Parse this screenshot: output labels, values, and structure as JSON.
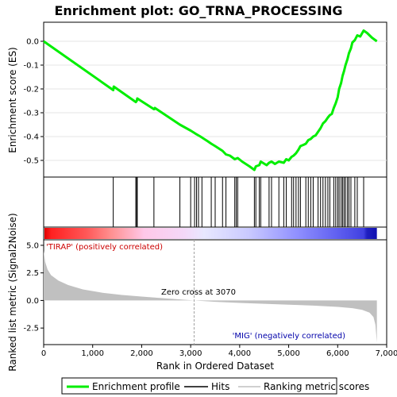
{
  "chart_data": {
    "type": "line",
    "title": "Enrichment plot: GO_TRNA_PROCESSING",
    "xlabel": "Rank in Ordered Dataset",
    "ylabel_top": "Enrichment score (ES)",
    "ylabel_bottom": "Ranked list metric (Signal2Noise)",
    "x_ticks": [
      0,
      1000,
      2000,
      3000,
      4000,
      5000,
      6000,
      7000
    ],
    "x_tick_labels": [
      "0",
      "1,000",
      "2,000",
      "3,000",
      "4,000",
      "5,000",
      "6,000",
      "7,000"
    ],
    "xlim": [
      0,
      7000
    ],
    "es_ylim": [
      -0.57,
      0.08
    ],
    "es_ticks": [
      0.0,
      -0.1,
      -0.2,
      -0.3,
      -0.4,
      -0.5
    ],
    "es_tick_labels": [
      "0.0",
      "-0.1",
      "-0.2",
      "-0.3",
      "-0.4",
      "-0.5"
    ],
    "metric_ylim": [
      -4.0,
      5.5
    ],
    "metric_ticks": [
      5.0,
      2.5,
      0.0,
      -2.5
    ],
    "metric_tick_labels": [
      "5.0",
      "2.5",
      "0.0",
      "-2.5"
    ],
    "dataset_size": 6800,
    "zero_cross": 3070,
    "zero_cross_label": "Zero cross at 3070",
    "pos_label": "'TIRAP' (positively correlated)",
    "neg_label": "'MIG' (negatively correlated)",
    "es_points": [
      [
        0,
        0.0
      ],
      [
        1420,
        -0.205
      ],
      [
        1430,
        -0.19
      ],
      [
        1880,
        -0.255
      ],
      [
        1900,
        -0.25
      ],
      [
        1910,
        -0.24
      ],
      [
        2250,
        -0.285
      ],
      [
        2270,
        -0.28
      ],
      [
        2780,
        -0.35
      ],
      [
        3000,
        -0.375
      ],
      [
        3100,
        -0.388
      ],
      [
        3200,
        -0.4
      ],
      [
        3350,
        -0.42
      ],
      [
        3420,
        -0.43
      ],
      [
        3500,
        -0.44
      ],
      [
        3650,
        -0.46
      ],
      [
        3720,
        -0.475
      ],
      [
        3800,
        -0.48
      ],
      [
        3900,
        -0.495
      ],
      [
        3960,
        -0.49
      ],
      [
        4050,
        -0.505
      ],
      [
        4200,
        -0.525
      ],
      [
        4300,
        -0.54
      ],
      [
        4330,
        -0.525
      ],
      [
        4400,
        -0.52
      ],
      [
        4430,
        -0.505
      ],
      [
        4550,
        -0.52
      ],
      [
        4600,
        -0.51
      ],
      [
        4650,
        -0.505
      ],
      [
        4720,
        -0.515
      ],
      [
        4800,
        -0.505
      ],
      [
        4900,
        -0.51
      ],
      [
        4950,
        -0.495
      ],
      [
        5000,
        -0.5
      ],
      [
        5060,
        -0.485
      ],
      [
        5100,
        -0.48
      ],
      [
        5150,
        -0.47
      ],
      [
        5200,
        -0.455
      ],
      [
        5240,
        -0.44
      ],
      [
        5300,
        -0.435
      ],
      [
        5350,
        -0.43
      ],
      [
        5400,
        -0.415
      ],
      [
        5450,
        -0.41
      ],
      [
        5500,
        -0.4
      ],
      [
        5550,
        -0.395
      ],
      [
        5600,
        -0.38
      ],
      [
        5650,
        -0.365
      ],
      [
        5700,
        -0.345
      ],
      [
        5750,
        -0.335
      ],
      [
        5800,
        -0.32
      ],
      [
        5840,
        -0.31
      ],
      [
        5880,
        -0.305
      ],
      [
        5920,
        -0.28
      ],
      [
        5960,
        -0.26
      ],
      [
        6000,
        -0.235
      ],
      [
        6030,
        -0.2
      ],
      [
        6070,
        -0.175
      ],
      [
        6100,
        -0.145
      ],
      [
        6130,
        -0.125
      ],
      [
        6160,
        -0.1
      ],
      [
        6200,
        -0.075
      ],
      [
        6230,
        -0.05
      ],
      [
        6270,
        -0.03
      ],
      [
        6300,
        -0.005
      ],
      [
        6350,
        0.005
      ],
      [
        6400,
        0.025
      ],
      [
        6460,
        0.02
      ],
      [
        6530,
        0.045
      ],
      [
        6600,
        0.035
      ],
      [
        6700,
        0.015
      ],
      [
        6800,
        0.0
      ]
    ],
    "hits": [
      1420,
      1880,
      1900,
      1910,
      2250,
      2780,
      3000,
      3080,
      3120,
      3160,
      3230,
      3420,
      3500,
      3650,
      3720,
      3900,
      3930,
      3960,
      4300,
      4330,
      4400,
      4430,
      4600,
      4650,
      4800,
      4900,
      4950,
      5060,
      5100,
      5150,
      5200,
      5240,
      5350,
      5400,
      5450,
      5500,
      5600,
      5650,
      5700,
      5750,
      5800,
      5840,
      5920,
      5960,
      6000,
      6030,
      6070,
      6100,
      6130,
      6160,
      6200,
      6230,
      6270,
      6350,
      6400,
      6530
    ],
    "metric_profile": [
      [
        0,
        4.5
      ],
      [
        30,
        3.5
      ],
      [
        80,
        2.8
      ],
      [
        150,
        2.3
      ],
      [
        300,
        1.8
      ],
      [
        500,
        1.4
      ],
      [
        800,
        1.0
      ],
      [
        1200,
        0.7
      ],
      [
        1600,
        0.5
      ],
      [
        2000,
        0.35
      ],
      [
        2500,
        0.18
      ],
      [
        3070,
        0.0
      ],
      [
        3500,
        -0.12
      ],
      [
        4000,
        -0.22
      ],
      [
        4500,
        -0.3
      ],
      [
        5000,
        -0.38
      ],
      [
        5500,
        -0.46
      ],
      [
        6000,
        -0.58
      ],
      [
        6300,
        -0.7
      ],
      [
        6500,
        -0.85
      ],
      [
        6650,
        -1.1
      ],
      [
        6730,
        -1.5
      ],
      [
        6770,
        -2.2
      ],
      [
        6800,
        -3.8
      ]
    ],
    "colors": {
      "es_line": "#00ee00",
      "hits": "#000000",
      "metric_fill": "#c0c0c0",
      "pos_label": "#cc0000",
      "neg_label": "#0000aa",
      "zero_cross_line": "#a0a0a0"
    }
  },
  "legend": {
    "items": [
      {
        "label": "Enrichment profile",
        "swatch": "es"
      },
      {
        "label": "Hits",
        "swatch": "hits"
      },
      {
        "label": "Ranking metric scores",
        "swatch": "metric"
      }
    ]
  }
}
